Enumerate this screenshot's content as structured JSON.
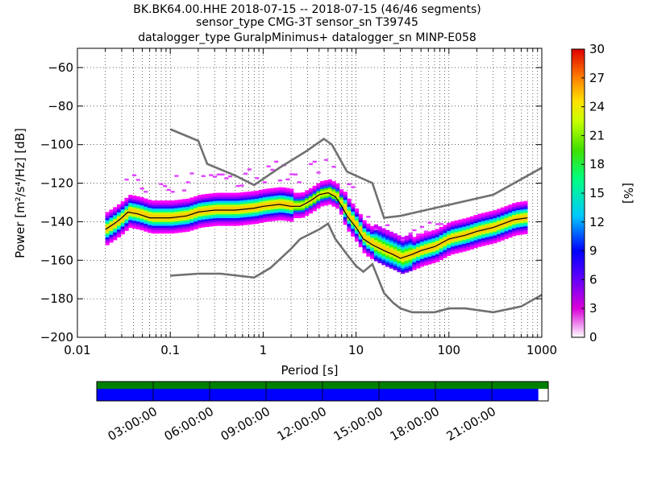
{
  "title_lines": [
    "BK.BK64.00.HHE   2018-07-15 -- 2018-07-15  (46/46 segments)",
    "sensor_type CMG-3T sensor_sn T39745",
    "datalogger_type GuralpMinimus+ datalogger_sn MINP-E058"
  ],
  "colorbar": {
    "label": "[%]",
    "ticks": [
      0,
      3,
      6,
      9,
      12,
      15,
      18,
      21,
      24,
      27,
      30
    ]
  },
  "timeline": {
    "ticks": [
      "03:00:00",
      "06:00:00",
      "09:00:00",
      "12:00:00",
      "15:00:00",
      "18:00:00",
      "21:00:00"
    ],
    "top_color": "#008000",
    "bottom_color": "#0000ff",
    "bottom_coverage": 0.978
  },
  "colors": {
    "model_curves": "#707070",
    "mean": "#000000"
  },
  "chart_data": {
    "type": "heatmap",
    "title": "BK.BK64.00.HHE   2018-07-15 -- 2018-07-15  (46/46 segments)",
    "xlabel": "Period [s]",
    "ylabel": "Power [m²/s⁴/Hz] [dB]",
    "xscale": "log",
    "xlim": [
      0.01,
      1000
    ],
    "ylim": [
      -200,
      -50
    ],
    "xticks": [
      0.01,
      0.1,
      1,
      10,
      100,
      1000
    ],
    "xtick_labels": [
      "0.01",
      "0.1",
      "1",
      "10",
      "100",
      "1000"
    ],
    "yticks": [
      -200,
      -180,
      -160,
      -140,
      -120,
      -100,
      -80,
      -60
    ],
    "grid": true,
    "colorbar_range": [
      0,
      30
    ],
    "series": [
      {
        "values": [
          [
            0.02,
            -144
          ],
          [
            0.025,
            -141
          ],
          [
            0.03,
            -138
          ],
          [
            0.035,
            -135
          ],
          [
            0.045,
            -136
          ],
          [
            0.06,
            -138
          ],
          [
            0.08,
            -138
          ],
          [
            0.1,
            -138
          ],
          [
            0.15,
            -137
          ],
          [
            0.2,
            -135
          ],
          [
            0.3,
            -134
          ],
          [
            0.5,
            -134
          ],
          [
            0.8,
            -133
          ],
          [
            1.0,
            -132
          ],
          [
            1.5,
            -131
          ],
          [
            2,
            -132
          ],
          [
            2.5,
            -132
          ],
          [
            3,
            -130
          ],
          [
            3.5,
            -128
          ],
          [
            4,
            -126
          ],
          [
            5,
            -125
          ],
          [
            6,
            -127
          ],
          [
            7,
            -132
          ],
          [
            8,
            -137
          ],
          [
            10,
            -143
          ],
          [
            12,
            -149
          ],
          [
            15,
            -152
          ],
          [
            20,
            -155
          ],
          [
            25,
            -157
          ],
          [
            30,
            -159
          ],
          [
            40,
            -157
          ],
          [
            50,
            -155
          ],
          [
            70,
            -153
          ],
          [
            100,
            -149
          ],
          [
            150,
            -147
          ],
          [
            200,
            -145
          ],
          [
            300,
            -143
          ],
          [
            500,
            -139
          ],
          [
            700,
            -138
          ]
        ]
      },
      {
        "values": [
          [
            0.1,
            -92
          ],
          [
            0.2,
            -98
          ],
          [
            0.25,
            -110
          ],
          [
            0.5,
            -116
          ],
          [
            0.8,
            -121
          ],
          [
            1.5,
            -112
          ],
          [
            3,
            -103
          ],
          [
            4.5,
            -97
          ],
          [
            5.5,
            -100
          ],
          [
            8,
            -114
          ],
          [
            15,
            -120
          ],
          [
            20,
            -138
          ],
          [
            30,
            -137
          ],
          [
            300,
            -126
          ],
          [
            1000,
            -112
          ]
        ]
      },
      {
        "values": [
          [
            0.1,
            -168
          ],
          [
            0.2,
            -167
          ],
          [
            0.35,
            -167
          ],
          [
            0.8,
            -169
          ],
          [
            1.2,
            -164
          ],
          [
            2,
            -154
          ],
          [
            2.5,
            -149
          ],
          [
            4,
            -144
          ],
          [
            5,
            -141
          ],
          [
            6,
            -149
          ],
          [
            8,
            -157
          ],
          [
            10,
            -163
          ],
          [
            12,
            -166
          ],
          [
            15,
            -162
          ],
          [
            20,
            -177
          ],
          [
            25,
            -182
          ],
          [
            30,
            -185
          ],
          [
            40,
            -187
          ],
          [
            70,
            -187
          ],
          [
            100,
            -185
          ],
          [
            150,
            -185
          ],
          [
            300,
            -187
          ],
          [
            600,
            -184
          ],
          [
            1000,
            -178
          ]
        ]
      }
    ]
  }
}
